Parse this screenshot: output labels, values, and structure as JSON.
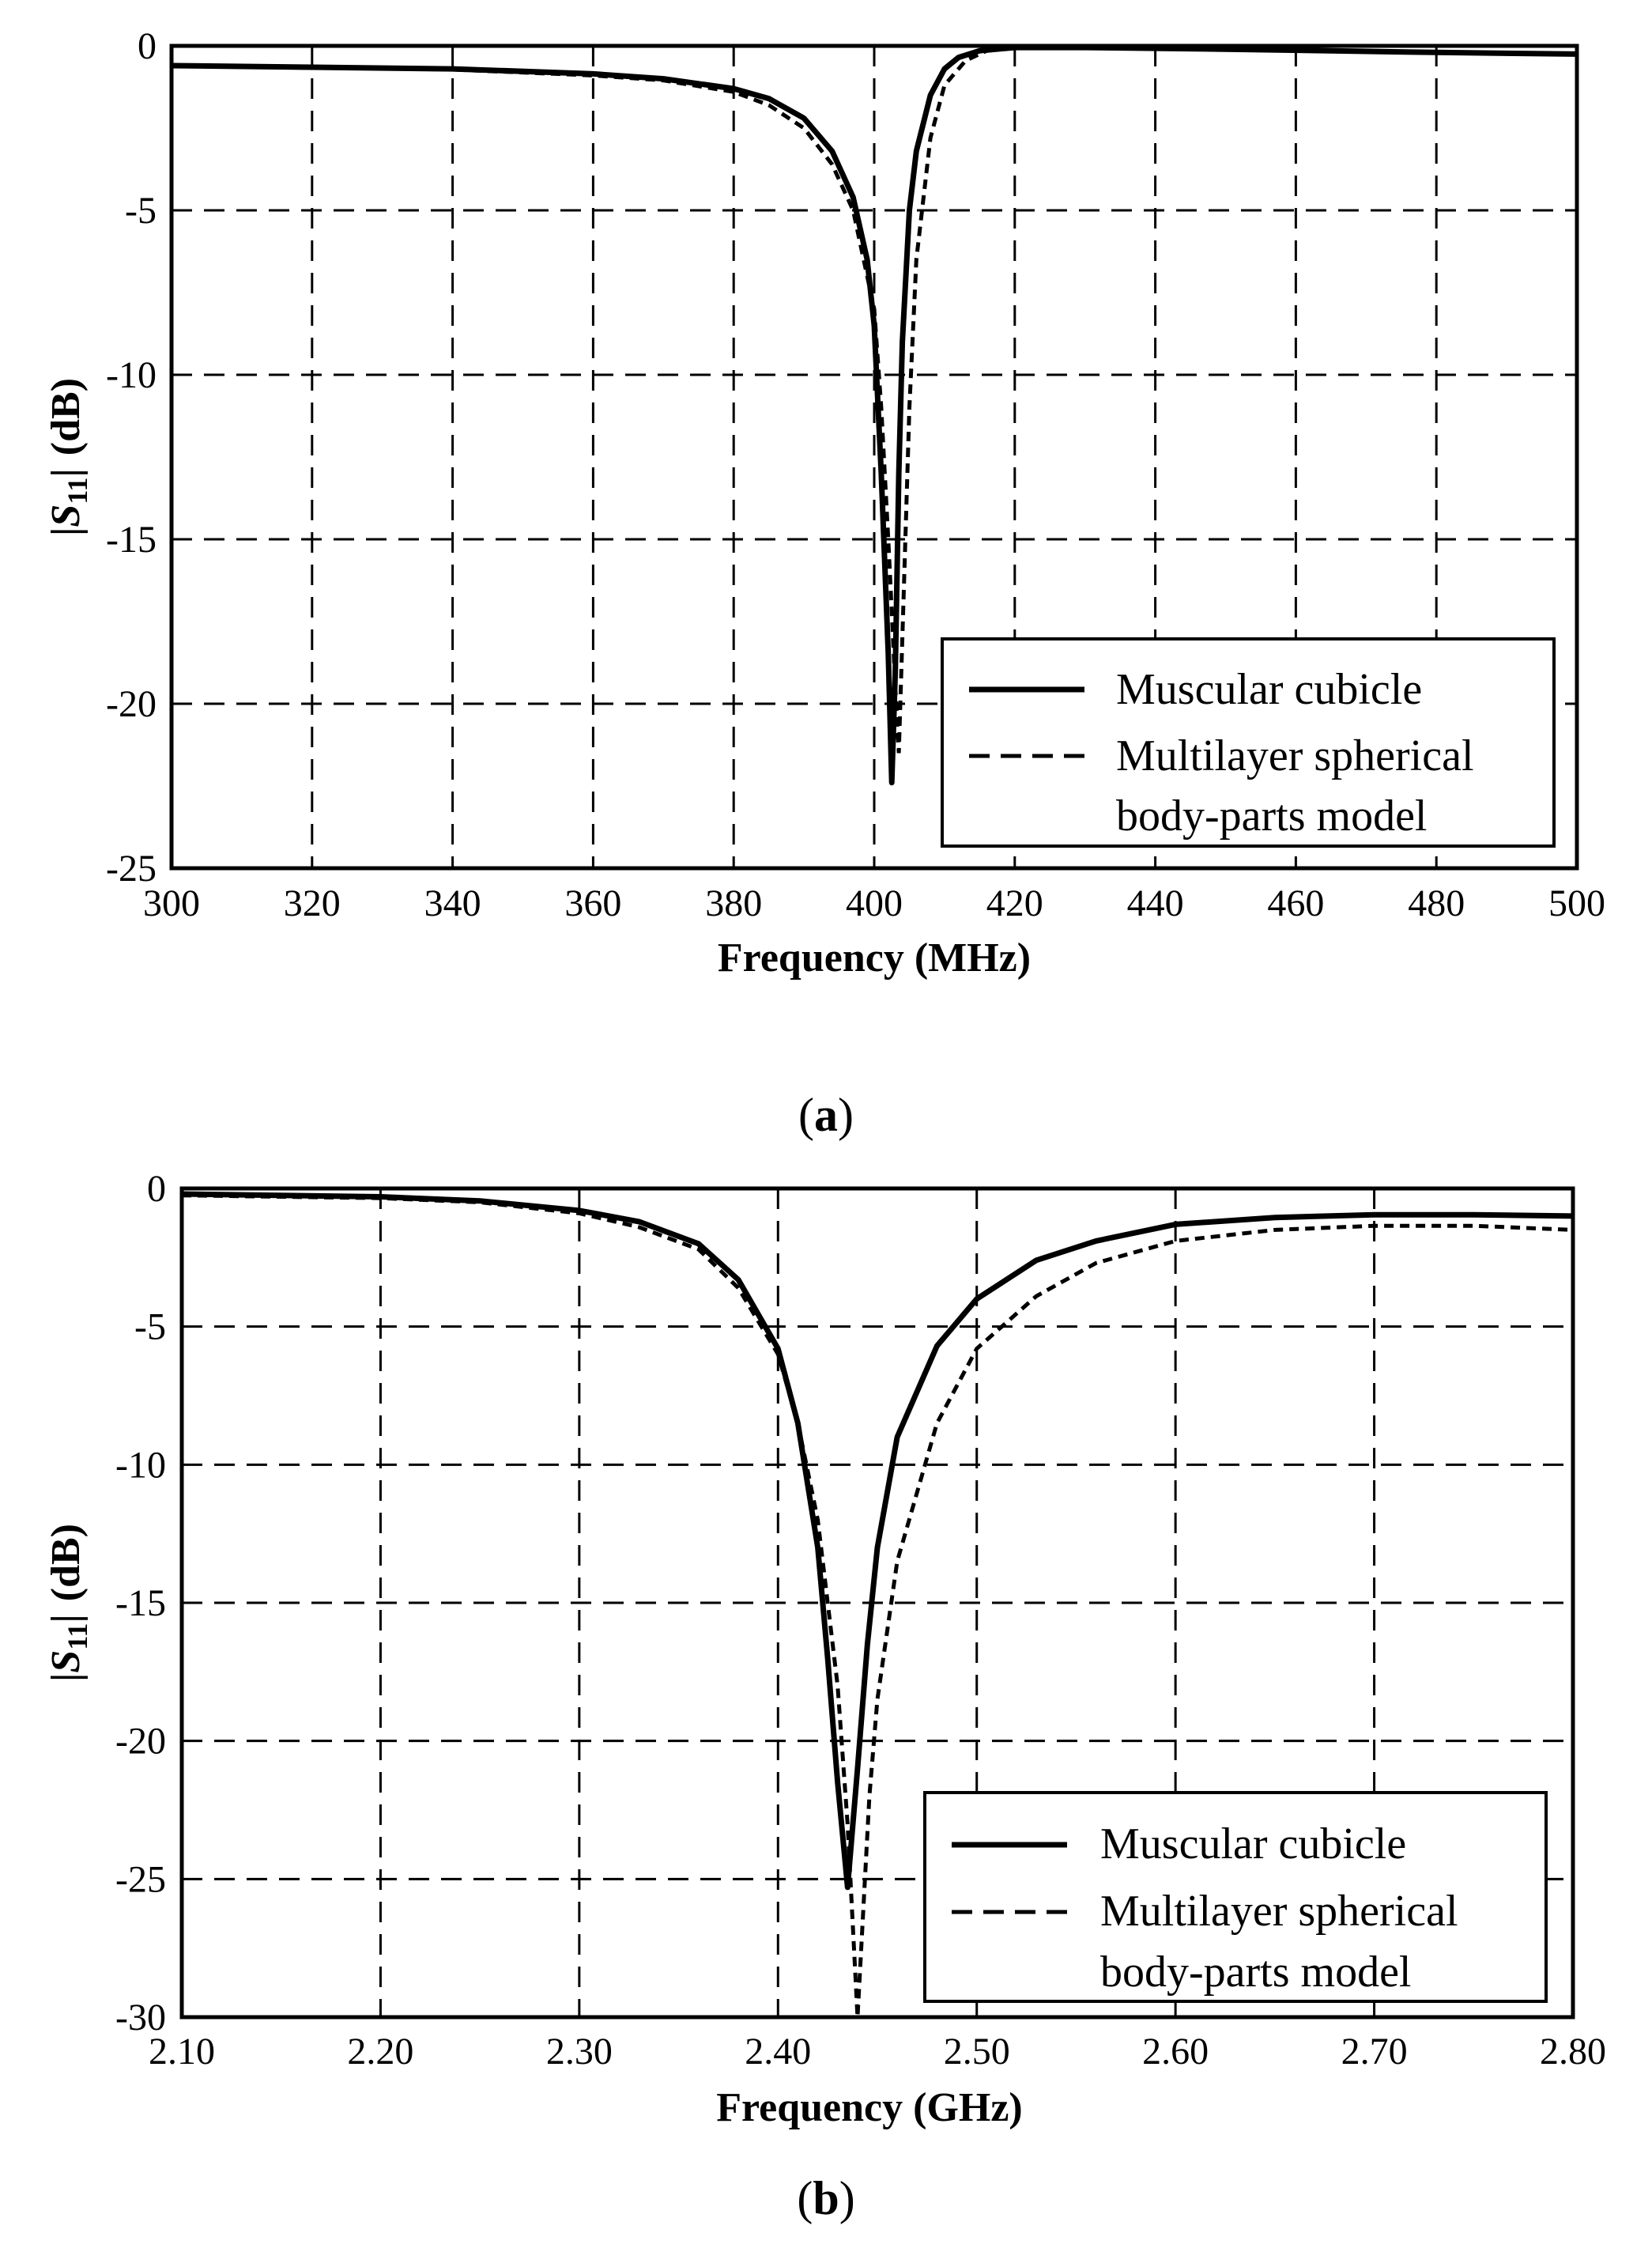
{
  "chart_data": [
    {
      "type": "line",
      "panel_label": "a",
      "xlabel": "Frequency (MHz)",
      "ylabel_main": "S",
      "ylabel_sub": "11",
      "ylabel_suffix": "(dB)",
      "xlim": [
        300,
        500
      ],
      "ylim": [
        -25,
        0
      ],
      "xticks": [
        300,
        320,
        340,
        360,
        380,
        400,
        420,
        440,
        460,
        480,
        500
      ],
      "yticks": [
        0,
        -5,
        -10,
        -15,
        -20,
        -25
      ],
      "xtick_labels": [
        "300",
        "320",
        "340",
        "360",
        "380",
        "400",
        "420",
        "440",
        "460",
        "480",
        "500"
      ],
      "ytick_labels": [
        "0",
        "-5",
        "-10",
        "-15",
        "-20",
        "-25"
      ],
      "grid": true,
      "legend": {
        "placement": "bottom-right",
        "entries": [
          "Muscular cubicle",
          "Multilayer spherical",
          "body-parts model"
        ]
      },
      "series": [
        {
          "name": "Muscular cubicle",
          "style": "solid",
          "x": [
            300,
            320,
            340,
            360,
            370,
            380,
            385,
            390,
            394,
            397,
            399,
            400,
            401,
            402,
            402.5,
            403,
            403.5,
            404,
            405,
            406,
            408,
            410,
            412,
            415,
            420,
            430,
            450,
            480,
            500
          ],
          "y": [
            -0.6,
            -0.65,
            -0.7,
            -0.85,
            -1.0,
            -1.3,
            -1.6,
            -2.2,
            -3.2,
            -4.6,
            -6.5,
            -8.5,
            -13,
            -18.5,
            -22.4,
            -19,
            -13,
            -9,
            -5,
            -3.2,
            -1.5,
            -0.7,
            -0.35,
            -0.15,
            -0.05,
            -0.05,
            -0.1,
            -0.2,
            -0.25
          ]
        },
        {
          "name": "Multilayer spherical body-parts model",
          "style": "dashed",
          "x": [
            300,
            320,
            340,
            360,
            370,
            380,
            385,
            390,
            394,
            397,
            400,
            401,
            402,
            403,
            403.5,
            404,
            405,
            406,
            408,
            410,
            413,
            416,
            420,
            430,
            450,
            480,
            500
          ],
          "y": [
            -0.6,
            -0.65,
            -0.72,
            -0.9,
            -1.05,
            -1.4,
            -1.8,
            -2.5,
            -3.6,
            -5.0,
            -8.0,
            -11,
            -15,
            -19.5,
            -21.5,
            -18,
            -11,
            -6.5,
            -2.8,
            -1.2,
            -0.45,
            -0.15,
            -0.05,
            -0.05,
            -0.1,
            -0.2,
            -0.25
          ]
        }
      ]
    },
    {
      "type": "line",
      "panel_label": "b",
      "xlabel": "Frequency (GHz)",
      "ylabel_main": "S",
      "ylabel_sub": "11",
      "ylabel_suffix": "(dB)",
      "xlim": [
        2.1,
        2.8
      ],
      "ylim": [
        -30,
        0
      ],
      "xticks": [
        2.1,
        2.2,
        2.3,
        2.4,
        2.5,
        2.6,
        2.7,
        2.8
      ],
      "yticks": [
        0,
        -5,
        -10,
        -15,
        -20,
        -25,
        -30
      ],
      "xtick_labels": [
        "2.10",
        "2.20",
        "2.30",
        "2.40",
        "2.50",
        "2.60",
        "2.70",
        "2.80"
      ],
      "ytick_labels": [
        "0",
        "-5",
        "-10",
        "-15",
        "-20",
        "-25",
        "-30"
      ],
      "grid": true,
      "legend": {
        "placement": "bottom-right",
        "entries": [
          "Muscular cubicle",
          "Multilayer spherical",
          "body-parts model"
        ]
      },
      "series": [
        {
          "name": "Muscular cubicle",
          "style": "solid",
          "x": [
            2.1,
            2.2,
            2.25,
            2.3,
            2.33,
            2.36,
            2.38,
            2.4,
            2.41,
            2.42,
            2.425,
            2.43,
            2.435,
            2.44,
            2.445,
            2.45,
            2.46,
            2.48,
            2.5,
            2.53,
            2.56,
            2.6,
            2.65,
            2.7,
            2.75,
            2.8
          ],
          "y": [
            -0.2,
            -0.3,
            -0.45,
            -0.8,
            -1.2,
            -2.0,
            -3.3,
            -5.8,
            -8.5,
            -13,
            -17,
            -21.5,
            -25.3,
            -21,
            -16.5,
            -13,
            -9,
            -5.7,
            -4.0,
            -2.6,
            -1.9,
            -1.3,
            -1.05,
            -0.95,
            -0.95,
            -1.0
          ]
        },
        {
          "name": "Multilayer spherical body-parts model",
          "style": "dashed",
          "x": [
            2.1,
            2.2,
            2.25,
            2.3,
            2.33,
            2.36,
            2.38,
            2.4,
            2.41,
            2.42,
            2.43,
            2.435,
            2.44,
            2.443,
            2.446,
            2.45,
            2.46,
            2.48,
            2.5,
            2.53,
            2.56,
            2.6,
            2.65,
            2.7,
            2.75,
            2.8
          ],
          "y": [
            -0.25,
            -0.35,
            -0.5,
            -0.9,
            -1.4,
            -2.2,
            -3.6,
            -6.0,
            -8.5,
            -12,
            -18,
            -23,
            -30,
            -26,
            -22,
            -18.5,
            -13.5,
            -8.5,
            -5.8,
            -3.9,
            -2.7,
            -1.9,
            -1.5,
            -1.35,
            -1.35,
            -1.5
          ]
        }
      ]
    }
  ]
}
